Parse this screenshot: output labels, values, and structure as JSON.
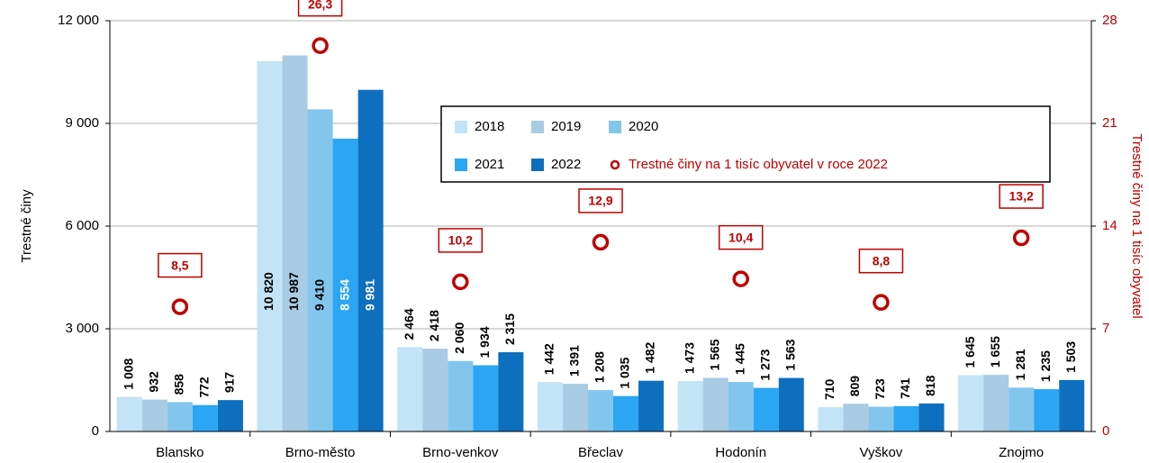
{
  "chart_data": {
    "type": "bar",
    "categories": [
      "Blansko",
      "Brno-město",
      "Brno-venkov",
      "Břeclav",
      "Hodonín",
      "Vyškov",
      "Znojmo"
    ],
    "ylabel": "Trestné činy",
    "y2label": "Trestné činy na 1 tisíc obyvatel",
    "ylim": [
      0,
      12000
    ],
    "yticks": [
      0,
      {
        "value": 3000,
        "label": "3 000"
      },
      {
        "value": 6000,
        "label": "6 000"
      },
      {
        "value": 9000,
        "label": "9 000"
      },
      {
        "value": 12000,
        "label": "12 000"
      }
    ],
    "y2lim": [
      0,
      28
    ],
    "y2ticks": [
      0,
      7,
      14,
      21,
      28
    ],
    "grid": true,
    "series": [
      {
        "name": "2018",
        "color": "#c3e3f7",
        "values": [
          1008,
          10820,
          2464,
          1442,
          1473,
          710,
          1645
        ],
        "value_labels": [
          "1 008",
          "10 820",
          "2 464",
          "1 442",
          "1 473",
          "710",
          "1 645"
        ]
      },
      {
        "name": "2019",
        "color": "#a9cbe3",
        "values": [
          932,
          10987,
          2418,
          1391,
          1565,
          809,
          1655
        ],
        "value_labels": [
          "932",
          "10 987",
          "2 418",
          "1 391",
          "1 565",
          "809",
          "1 655"
        ]
      },
      {
        "name": "2020",
        "color": "#82c6ee",
        "values": [
          858,
          9410,
          2060,
          1208,
          1445,
          723,
          1281
        ],
        "value_labels": [
          "858",
          "9 410",
          "2 060",
          "1 208",
          "1 445",
          "723",
          "1 281"
        ]
      },
      {
        "name": "2021",
        "color": "#2aa6f4",
        "values": [
          772,
          8554,
          1934,
          1035,
          1273,
          741,
          1235
        ],
        "value_labels": [
          "772",
          "8 554",
          "1 934",
          "1 035",
          "1 273",
          "741",
          "1 235"
        ]
      },
      {
        "name": "2022",
        "color": "#0f6fbf",
        "values": [
          917,
          9981,
          2315,
          1482,
          1563,
          818,
          1503
        ],
        "value_labels": [
          "917",
          "9 981",
          "2 315",
          "1 482",
          "1 563",
          "818",
          "1 503"
        ]
      },
      {
        "name": "Trestné činy na 1 tisíc obyvatel v roce 2022",
        "type": "scatter",
        "axis": "y2",
        "color": "#c00000",
        "values": [
          8.5,
          26.3,
          10.2,
          12.9,
          10.4,
          8.8,
          13.2
        ],
        "value_labels": [
          "8,5",
          "26,3",
          "10,2",
          "12,9",
          "10,4",
          "8,8",
          "13,2"
        ]
      }
    ]
  }
}
